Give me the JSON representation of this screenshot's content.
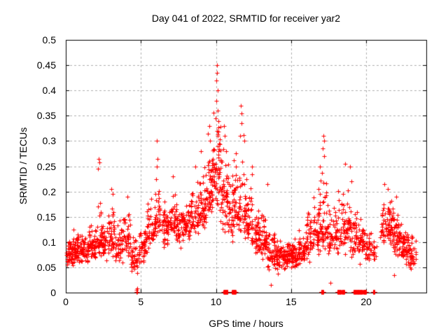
{
  "style": {
    "background": "#ffffff",
    "axis_color": "#000000",
    "grid_color": "#b0b0b0",
    "marker_color": "#ff0000"
  },
  "chart_data": {
    "type": "scatter",
    "title": "Day 041 of 2022, SRMTID for receiver yar2",
    "xlabel": "GPS time / hours",
    "ylabel": "SRMTID / TECUs",
    "xlim": [
      0,
      24
    ],
    "ylim": [
      0,
      0.5
    ],
    "xticks": [
      0,
      5,
      10,
      15,
      20
    ],
    "yticks": [
      0,
      0.05,
      0.1,
      0.15,
      0.2,
      0.25,
      0.3,
      0.35,
      0.4,
      0.45,
      0.5
    ],
    "grid": true,
    "legend": null,
    "marker": "+",
    "series_color": "#ff0000",
    "seed": 2022041,
    "density_profile": [
      [
        0.03,
        0.5,
        55,
        0.04,
        0.08,
        0.135
      ],
      [
        0.5,
        1.0,
        55,
        0.045,
        0.085,
        0.13
      ],
      [
        1.0,
        1.5,
        50,
        0.05,
        0.08,
        0.125
      ],
      [
        1.5,
        2.0,
        50,
        0.055,
        0.09,
        0.16
      ],
      [
        2.0,
        2.4,
        40,
        0.06,
        0.11,
        0.24
      ],
      [
        2.4,
        2.8,
        35,
        0.055,
        0.095,
        0.165
      ],
      [
        2.8,
        3.3,
        45,
        0.06,
        0.11,
        0.2
      ],
      [
        3.3,
        3.8,
        40,
        0.05,
        0.09,
        0.15
      ],
      [
        3.8,
        4.3,
        40,
        0.05,
        0.1,
        0.185
      ],
      [
        4.3,
        4.9,
        45,
        0.025,
        0.07,
        0.125
      ],
      [
        4.9,
        5.4,
        40,
        0.05,
        0.1,
        0.16
      ],
      [
        5.4,
        5.9,
        40,
        0.07,
        0.12,
        0.21
      ],
      [
        5.9,
        6.3,
        35,
        0.09,
        0.15,
        0.27
      ],
      [
        6.3,
        6.8,
        40,
        0.08,
        0.125,
        0.19
      ],
      [
        6.8,
        7.3,
        42,
        0.09,
        0.14,
        0.22
      ],
      [
        7.3,
        7.8,
        45,
        0.08,
        0.125,
        0.19
      ],
      [
        7.8,
        8.3,
        45,
        0.09,
        0.135,
        0.21
      ],
      [
        8.3,
        8.8,
        45,
        0.1,
        0.15,
        0.24
      ],
      [
        8.8,
        9.3,
        50,
        0.11,
        0.165,
        0.28
      ],
      [
        9.3,
        9.8,
        55,
        0.12,
        0.19,
        0.32
      ],
      [
        9.8,
        10.3,
        55,
        0.14,
        0.25,
        0.43
      ],
      [
        10.3,
        10.8,
        50,
        0.1,
        0.19,
        0.33
      ],
      [
        10.8,
        11.3,
        50,
        0.08,
        0.16,
        0.28
      ],
      [
        11.3,
        11.9,
        52,
        0.09,
        0.17,
        0.34
      ],
      [
        11.9,
        12.4,
        50,
        0.08,
        0.14,
        0.27
      ],
      [
        12.4,
        12.9,
        45,
        0.06,
        0.11,
        0.2
      ],
      [
        12.9,
        13.4,
        45,
        0.055,
        0.1,
        0.18
      ],
      [
        13.4,
        13.9,
        45,
        0.03,
        0.08,
        0.15
      ],
      [
        13.9,
        14.4,
        50,
        0.035,
        0.07,
        0.115
      ],
      [
        14.4,
        14.9,
        50,
        0.04,
        0.07,
        0.11
      ],
      [
        14.9,
        15.4,
        50,
        0.04,
        0.075,
        0.12
      ],
      [
        15.4,
        15.9,
        45,
        0.05,
        0.08,
        0.14
      ],
      [
        15.9,
        16.4,
        45,
        0.055,
        0.1,
        0.19
      ],
      [
        16.4,
        16.9,
        45,
        0.06,
        0.12,
        0.23
      ],
      [
        16.9,
        17.4,
        45,
        0.06,
        0.13,
        0.29
      ],
      [
        17.4,
        17.9,
        40,
        0.06,
        0.11,
        0.2
      ],
      [
        17.9,
        18.4,
        40,
        0.065,
        0.12,
        0.23
      ],
      [
        18.4,
        18.9,
        40,
        0.07,
        0.13,
        0.24
      ],
      [
        18.9,
        19.4,
        42,
        0.05,
        0.11,
        0.21
      ],
      [
        19.4,
        19.9,
        42,
        0.05,
        0.1,
        0.17
      ],
      [
        19.9,
        20.4,
        32,
        0.045,
        0.09,
        0.14
      ],
      [
        20.4,
        20.68,
        14,
        0.05,
        0.08,
        0.12
      ],
      [
        20.68,
        21.0,
        3,
        0.08,
        0.11,
        0.15
      ],
      [
        21.0,
        21.4,
        30,
        0.08,
        0.13,
        0.21
      ],
      [
        21.4,
        21.8,
        45,
        0.08,
        0.125,
        0.2
      ],
      [
        21.8,
        22.3,
        50,
        0.05,
        0.11,
        0.18
      ],
      [
        22.3,
        22.8,
        55,
        0.05,
        0.09,
        0.15
      ],
      [
        22.8,
        23.3,
        40,
        0.04,
        0.08,
        0.13
      ]
    ],
    "feature_points": [
      [
        2.18,
        0.265
      ],
      [
        2.22,
        0.258
      ],
      [
        2.15,
        0.245
      ],
      [
        3.05,
        0.205
      ],
      [
        3.1,
        0.195
      ],
      [
        4.1,
        0.19
      ],
      [
        6.08,
        0.3
      ],
      [
        6.1,
        0.265
      ],
      [
        6.05,
        0.25
      ],
      [
        7.15,
        0.23
      ],
      [
        8.6,
        0.25
      ],
      [
        9.0,
        0.28
      ],
      [
        9.45,
        0.315
      ],
      [
        9.55,
        0.33
      ],
      [
        9.6,
        0.3
      ],
      [
        10.0,
        0.42
      ],
      [
        10.05,
        0.45
      ],
      [
        10.07,
        0.435
      ],
      [
        10.1,
        0.4
      ],
      [
        10.02,
        0.38
      ],
      [
        10.12,
        0.36
      ],
      [
        9.95,
        0.345
      ],
      [
        10.55,
        0.33
      ],
      [
        10.6,
        0.31
      ],
      [
        11.65,
        0.37
      ],
      [
        11.7,
        0.355
      ],
      [
        11.72,
        0.335
      ],
      [
        11.6,
        0.31
      ],
      [
        11.9,
        0.3
      ],
      [
        12.4,
        0.25
      ],
      [
        13.4,
        0.215
      ],
      [
        13.65,
        0.015
      ],
      [
        16.9,
        0.25
      ],
      [
        17.15,
        0.31
      ],
      [
        17.18,
        0.3
      ],
      [
        17.12,
        0.285
      ],
      [
        17.2,
        0.27
      ],
      [
        17.6,
        0.02
      ],
      [
        18.6,
        0.255
      ],
      [
        18.9,
        0.25
      ],
      [
        19.0,
        0.22
      ],
      [
        21.2,
        0.215
      ],
      [
        21.45,
        0.205
      ],
      [
        21.85,
        0.035
      ],
      [
        22.0,
        0.19
      ],
      [
        4.7,
        0.005
      ],
      [
        4.74,
        0.008
      ]
    ],
    "zero_runs": [
      [
        4.68,
        4.76,
        3
      ],
      [
        10.5,
        10.78,
        24
      ],
      [
        11.05,
        11.32,
        22
      ],
      [
        17.0,
        17.16,
        12
      ],
      [
        18.08,
        18.32,
        18
      ],
      [
        18.36,
        18.56,
        14
      ],
      [
        19.15,
        19.76,
        44
      ],
      [
        19.8,
        20.0,
        16
      ],
      [
        20.45,
        20.57,
        9
      ]
    ]
  }
}
